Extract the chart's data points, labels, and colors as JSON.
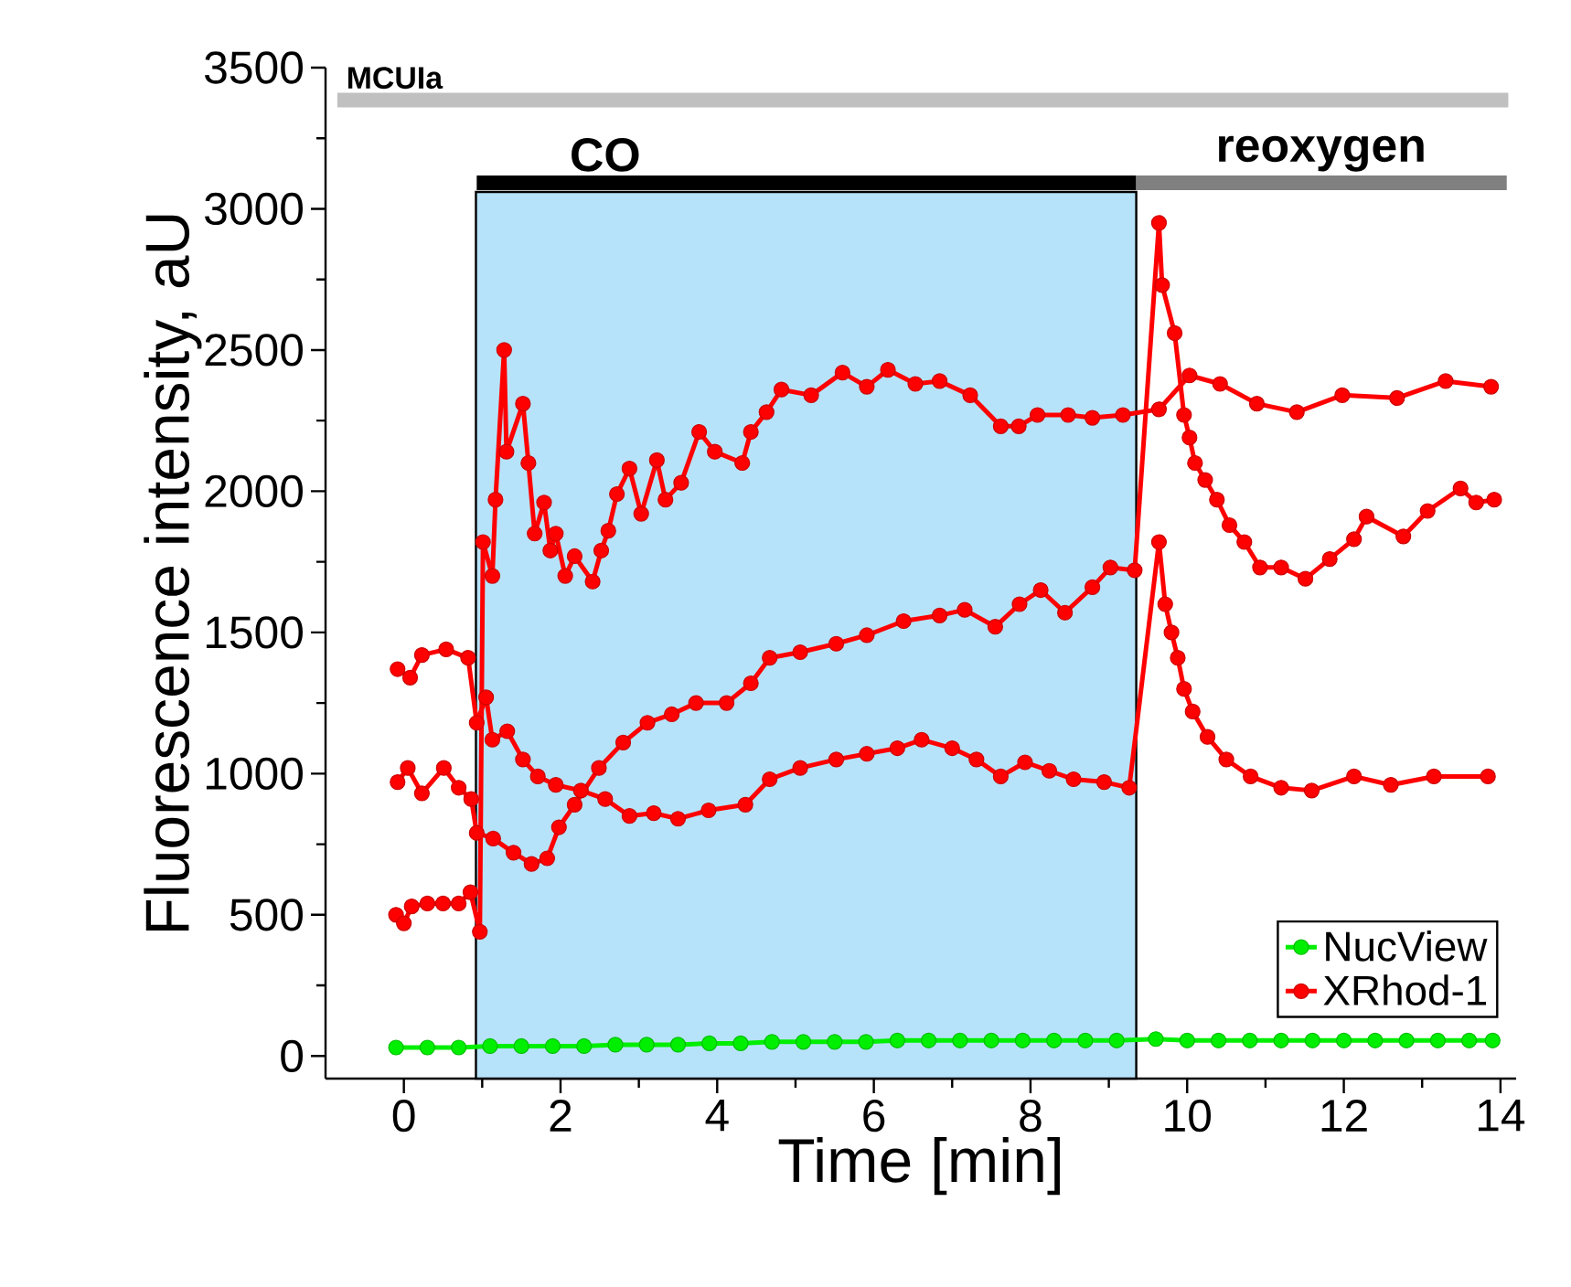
{
  "chart_data": {
    "type": "line",
    "xlabel": "Time [min]",
    "ylabel": "Fluorescence intensity, aU",
    "xlim": [
      -1,
      14.2
    ],
    "ylim": [
      -80,
      3500
    ],
    "xticks": [
      0,
      2,
      4,
      6,
      8,
      10,
      12,
      14
    ],
    "yticks": [
      0,
      500,
      1000,
      1500,
      2000,
      2500,
      3000,
      3500
    ],
    "marker": "circle",
    "line_style": "solid",
    "legend": "bottom right",
    "grid": false,
    "bands": [
      {
        "axis": "x",
        "from": 0.92,
        "to": 9.35,
        "color": "#b7e3fa"
      }
    ],
    "annotations": [
      {
        "text": "MCUIa",
        "x": -0.12,
        "y": 3385
      },
      {
        "text": "CO",
        "x": 2.57,
        "y": 3092
      },
      {
        "text": "reoxygen",
        "x": 11.71,
        "y": 3092
      }
    ],
    "series": [
      {
        "color": "#c0c0c0",
        "marker": "none",
        "x": [
          -0.85,
          14.1
        ],
        "values": [
          3385,
          3385
        ]
      },
      {
        "color": "#000000",
        "marker": "none",
        "x": [
          0.93,
          9.35
        ],
        "values": [
          3092,
          3092
        ]
      },
      {
        "color": "#808080",
        "marker": "none",
        "x": [
          9.35,
          14.08
        ],
        "values": [
          3092,
          3092
        ]
      },
      {
        "name": "NucView",
        "color": "#00ee00",
        "x": [
          -0.1,
          0.3,
          0.7,
          1.1,
          1.5,
          1.9,
          2.3,
          2.7,
          3.1,
          3.5,
          3.9,
          4.3,
          4.7,
          5.1,
          5.5,
          5.9,
          6.3,
          6.7,
          7.1,
          7.5,
          7.9,
          8.3,
          8.7,
          9.1,
          9.6,
          10.0,
          10.4,
          10.8,
          11.2,
          11.6,
          12.0,
          12.4,
          12.8,
          13.2,
          13.6,
          13.9
        ],
        "values": [
          30,
          30,
          30,
          35,
          35,
          35,
          35,
          40,
          40,
          40,
          45,
          45,
          50,
          50,
          50,
          50,
          55,
          55,
          55,
          55,
          55,
          55,
          55,
          55,
          60,
          55,
          55,
          55,
          55,
          55,
          55,
          55,
          55,
          55,
          55,
          55
        ]
      },
      {
        "name": "XRhod-1",
        "color": "#ff0000",
        "x": [
          -0.1,
          0.0,
          0.1,
          0.3,
          0.5,
          0.7,
          0.85,
          0.97,
          1.01,
          1.13,
          1.17,
          1.28,
          1.31,
          1.52,
          1.59,
          1.67,
          1.79,
          1.87,
          1.94,
          2.06,
          2.18,
          2.41,
          2.52,
          2.61,
          2.72,
          2.88,
          3.03,
          3.23,
          3.34,
          3.54,
          3.77,
          3.97,
          4.32,
          4.43,
          4.63,
          4.82,
          5.2,
          5.6,
          5.91,
          6.18,
          6.53,
          6.84,
          7.23,
          7.62,
          7.85,
          8.09,
          8.48,
          8.79,
          9.18,
          9.64,
          10.03,
          10.42,
          10.89,
          11.4,
          11.98,
          12.68,
          13.3,
          13.88
        ],
        "values": [
          500,
          470,
          530,
          540,
          540,
          540,
          580,
          440,
          1820,
          1700,
          1970,
          2500,
          2140,
          2310,
          2100,
          1850,
          1960,
          1790,
          1850,
          1700,
          1770,
          1680,
          1790,
          1860,
          1990,
          2080,
          1920,
          2110,
          1970,
          2030,
          2210,
          2140,
          2100,
          2210,
          2280,
          2360,
          2340,
          2420,
          2370,
          2430,
          2380,
          2390,
          2340,
          2230,
          2230,
          2270,
          2270,
          2260,
          2270,
          2290,
          2410,
          2380,
          2310,
          2280,
          2340,
          2330,
          2390,
          2370
        ]
      },
      {
        "color": "#ff0000",
        "x": [
          -0.08,
          0.05,
          0.23,
          0.51,
          0.7,
          0.86,
          0.93,
          1.14,
          1.4,
          1.63,
          1.83,
          1.98,
          2.18,
          2.49,
          2.8,
          3.11,
          3.42,
          3.73,
          4.12,
          4.43,
          4.67,
          5.06,
          5.52,
          5.91,
          6.38,
          6.84,
          7.16,
          7.55,
          7.86,
          8.13,
          8.44,
          8.79,
          9.02,
          9.33,
          9.64,
          9.68,
          9.84,
          9.96,
          10.03,
          10.1,
          10.23,
          10.38,
          10.54,
          10.73,
          10.93,
          11.2,
          11.51,
          11.82,
          12.13,
          12.29,
          12.76,
          13.07,
          13.49,
          13.69,
          13.92
        ],
        "values": [
          970,
          1020,
          930,
          1020,
          950,
          910,
          790,
          770,
          720,
          680,
          700,
          810,
          890,
          1020,
          1110,
          1180,
          1210,
          1250,
          1250,
          1320,
          1410,
          1430,
          1460,
          1490,
          1540,
          1560,
          1580,
          1520,
          1600,
          1650,
          1570,
          1660,
          1730,
          1720,
          2950,
          2730,
          2560,
          2270,
          2190,
          2100,
          2040,
          1970,
          1880,
          1820,
          1730,
          1730,
          1690,
          1760,
          1830,
          1910,
          1840,
          1930,
          2010,
          1960,
          1970
        ]
      },
      {
        "color": "#ff0000",
        "x": [
          -0.08,
          0.08,
          0.23,
          0.54,
          0.82,
          0.93,
          1.05,
          1.13,
          1.32,
          1.52,
          1.71,
          1.94,
          2.26,
          2.57,
          2.88,
          3.19,
          3.5,
          3.89,
          4.36,
          4.67,
          5.06,
          5.52,
          5.91,
          6.3,
          6.61,
          7.0,
          7.31,
          7.62,
          7.93,
          8.24,
          8.55,
          8.94,
          9.26,
          9.64,
          9.72,
          9.8,
          9.88,
          9.96,
          10.07,
          10.26,
          10.5,
          10.81,
          11.2,
          11.59,
          12.13,
          12.6,
          13.15,
          13.84
        ],
        "values": [
          1370,
          1340,
          1420,
          1440,
          1410,
          1180,
          1270,
          1120,
          1150,
          1050,
          990,
          960,
          940,
          910,
          850,
          860,
          840,
          870,
          890,
          980,
          1020,
          1050,
          1070,
          1090,
          1120,
          1090,
          1050,
          990,
          1040,
          1010,
          980,
          970,
          950,
          1820,
          1600,
          1500,
          1410,
          1300,
          1220,
          1130,
          1050,
          990,
          950,
          940,
          990,
          960,
          990,
          990
        ]
      }
    ]
  }
}
